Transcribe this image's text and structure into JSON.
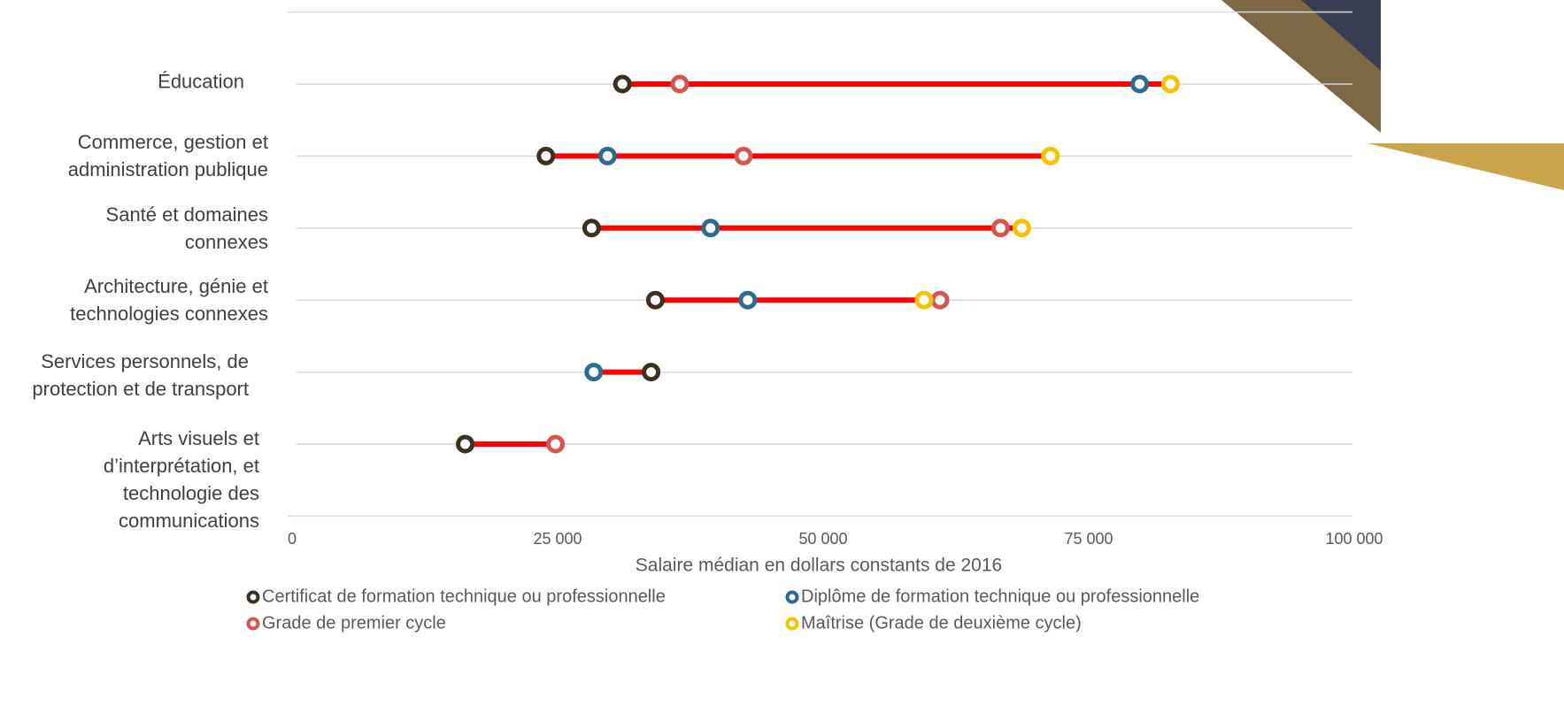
{
  "chart_data": {
    "type": "dumbbell",
    "categories": [
      "Éducation",
      "Commerce, gestion et administration publique",
      "Santé et domaines connexes",
      "Architecture, génie et technologies connexes",
      "Services personnels, de protection et de transport",
      "Arts visuels et d’interprétation, et technologie des communications"
    ],
    "series": [
      {
        "name": "Certificat de formation technique ou professionnelle",
        "color": "#3b3120",
        "values": [
          31100,
          23900,
          28200,
          34200,
          33800,
          16300
        ]
      },
      {
        "name": "Diplôme de formation technique ou professionnelle",
        "color": "#2e6b8f",
        "values": [
          79800,
          29700,
          39400,
          42900,
          28400,
          null
        ]
      },
      {
        "name": "Grade de premier cycle",
        "color": "#d9534f",
        "values": [
          36500,
          42500,
          66700,
          61000,
          null,
          24800
        ]
      },
      {
        "name": "Maîtrise (Grade de deuxième cycle)",
        "color": "#f5c200",
        "values": [
          82700,
          71400,
          68700,
          59500,
          null,
          null
        ]
      }
    ],
    "range_color": "#ff0000",
    "x_label": "Salaire médian en dollars constants de 2016",
    "xlim": [
      0,
      100000
    ],
    "xticks": [
      0,
      {
        "value": 25000,
        "label": "25 000"
      },
      {
        "value": 50000,
        "label": "50 000"
      },
      {
        "value": 75000,
        "label": "75 000"
      },
      {
        "value": 100000,
        "label": "100 000"
      }
    ],
    "grid": true
  }
}
